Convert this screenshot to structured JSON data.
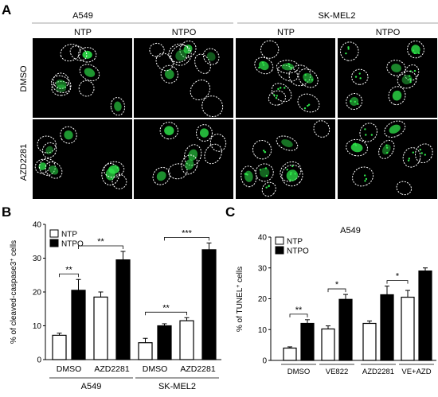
{
  "panel_a": {
    "letter": "A",
    "cell_lines": [
      "A549",
      "SK-MEL2"
    ],
    "columns": [
      "NTP",
      "NTPO",
      "NTP",
      "NTPO"
    ],
    "rows": [
      "DMSO",
      "AZD2281"
    ]
  },
  "chart_data": [
    {
      "type": "bar",
      "panel": "B",
      "ylabel": "% of cleaved-caspase3+ cells",
      "ylabel_main": "% of cleaved-caspase3",
      "ylabel_sup": "+",
      "ylabel_tail": " cells",
      "ylim": [
        0,
        40
      ],
      "yticks": [
        0,
        10,
        20,
        30,
        40
      ],
      "legend": [
        "NTP",
        "NTPO"
      ],
      "legend_position": "top-left",
      "groups": [
        {
          "label": "A549",
          "conditions": [
            "DMSO",
            "AZD2281"
          ]
        },
        {
          "label": "SK-MEL2",
          "conditions": [
            "DMSO",
            "AZD2281"
          ]
        }
      ],
      "bars": [
        {
          "group": 0,
          "condition": "DMSO",
          "series": "NTP",
          "value": 7.2,
          "error": 0.6
        },
        {
          "group": 0,
          "condition": "DMSO",
          "series": "NTPO",
          "value": 20.5,
          "error": 3.2
        },
        {
          "group": 0,
          "condition": "AZD2281",
          "series": "NTP",
          "value": 18.5,
          "error": 1.5
        },
        {
          "group": 0,
          "condition": "AZD2281",
          "series": "NTPO",
          "value": 29.5,
          "error": 2.5
        },
        {
          "group": 1,
          "condition": "DMSO",
          "series": "NTP",
          "value": 5.0,
          "error": 1.3
        },
        {
          "group": 1,
          "condition": "DMSO",
          "series": "NTPO",
          "value": 10.0,
          "error": 0.6
        },
        {
          "group": 1,
          "condition": "AZD2281",
          "series": "NTP",
          "value": 11.5,
          "error": 0.9
        },
        {
          "group": 1,
          "condition": "AZD2281",
          "series": "NTPO",
          "value": 32.5,
          "error": 2.0
        }
      ],
      "significance": [
        {
          "from": 0,
          "to": 1,
          "label": "**"
        },
        {
          "from": 1,
          "to": 3,
          "label": "**"
        },
        {
          "from": 4,
          "to": 6,
          "label": "**"
        },
        {
          "from": 5,
          "to": 7,
          "label": "***"
        }
      ]
    },
    {
      "type": "bar",
      "panel": "C",
      "title": "A549",
      "ylabel": "% of TUNEL + cells",
      "ylabel_main": "% of TUNEL",
      "ylabel_sup": "+",
      "ylabel_tail": " cells",
      "ylim": [
        0,
        40
      ],
      "yticks": [
        0,
        10,
        20,
        30,
        40
      ],
      "legend": [
        "NTP",
        "NTPO"
      ],
      "legend_position": "top-left",
      "categories": [
        "DMSO",
        "VE822",
        "AZD2281",
        "VE+AZD"
      ],
      "bars": [
        {
          "category": "DMSO",
          "series": "NTP",
          "value": 4.0,
          "error": 0.4
        },
        {
          "category": "DMSO",
          "series": "NTPO",
          "value": 12.0,
          "error": 1.2
        },
        {
          "category": "VE822",
          "series": "NTP",
          "value": 10.2,
          "error": 1.0
        },
        {
          "category": "VE822",
          "series": "NTPO",
          "value": 19.8,
          "error": 1.6
        },
        {
          "category": "AZD2281",
          "series": "NTP",
          "value": 12.0,
          "error": 0.8
        },
        {
          "category": "AZD2281",
          "series": "NTPO",
          "value": 21.3,
          "error": 2.8
        },
        {
          "category": "VE+AZD",
          "series": "NTP",
          "value": 20.5,
          "error": 2.2
        },
        {
          "category": "VE+AZD",
          "series": "NTPO",
          "value": 29.0,
          "error": 1.0
        }
      ],
      "significance": [
        {
          "from": 0,
          "to": 1,
          "label": "**"
        },
        {
          "from": 2,
          "to": 3,
          "label": "*"
        },
        {
          "from": 5,
          "to": 6,
          "label": "*"
        }
      ]
    }
  ],
  "colors": {
    "ntp_fill": "#ffffff",
    "ntpo_fill": "#000000",
    "micrograph_bg": "#000000",
    "nucleus_green": "#2ee64a",
    "outline": "#ffffff"
  }
}
